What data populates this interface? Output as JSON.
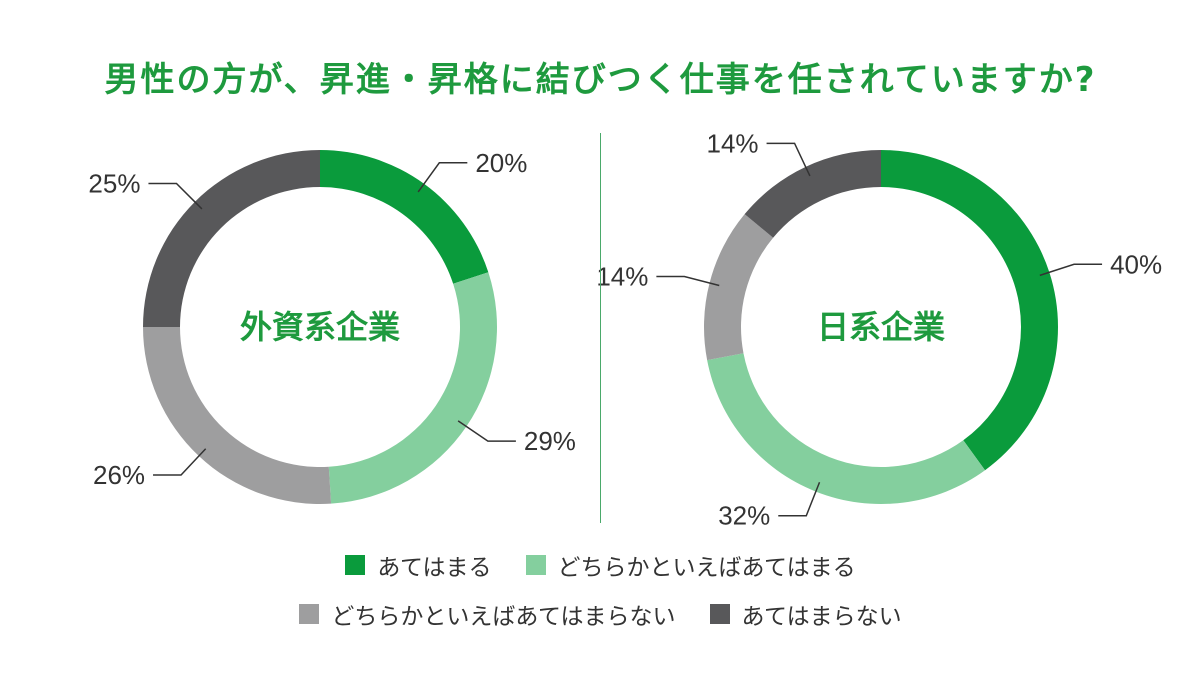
{
  "title": "男性の方が、昇進・昇格に結びつく仕事を任されていますか?",
  "colors": {
    "title": "#1e9a3e",
    "center_label": "#1e9a3e",
    "divider": "#4aa96a"
  },
  "legend": [
    {
      "label": "あてはまる",
      "color": "#0a9b3c"
    },
    {
      "label": "どちらかといえばあてはまる",
      "color": "#84cf9e"
    },
    {
      "label": "どちらかといえばあてはまらない",
      "color": "#9e9e9f"
    },
    {
      "label": "あてはまらない",
      "color": "#58585a"
    }
  ],
  "chart_data": [
    {
      "type": "pie",
      "center_label": "外資系企業",
      "categories": [
        "あてはまる",
        "どちらかといえばあてはまる",
        "どちらかといえばあてはまらない",
        "あてはまらない"
      ],
      "values": [
        20,
        29,
        26,
        25
      ],
      "data_labels": [
        "20%",
        "29%",
        "26%",
        "25%"
      ],
      "colors": [
        "#0a9b3c",
        "#84cf9e",
        "#9e9e9f",
        "#58585a"
      ],
      "legend_position": "bottom"
    },
    {
      "type": "pie",
      "center_label": "日系企業",
      "categories": [
        "あてはまる",
        "どちらかといえばあてはまる",
        "どちらかといえばあてはまらない",
        "あてはまらない"
      ],
      "values": [
        40,
        32,
        14,
        14
      ],
      "data_labels": [
        "40%",
        "32%",
        "14%",
        "14%"
      ],
      "colors": [
        "#0a9b3c",
        "#84cf9e",
        "#9e9e9f",
        "#58585a"
      ],
      "legend_position": "bottom"
    }
  ]
}
